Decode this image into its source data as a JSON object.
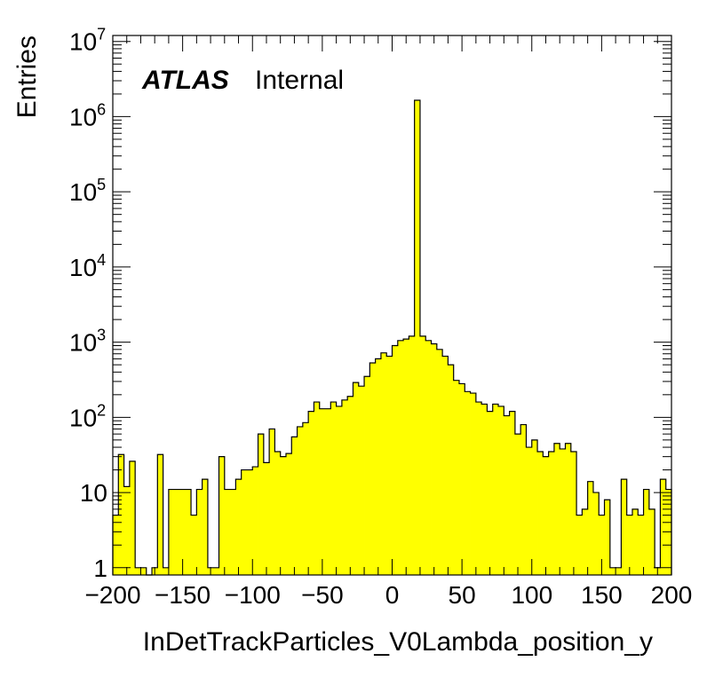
{
  "chart_data": {
    "type": "bar",
    "style": "histogram",
    "xlabel": "InDetTrackParticles_V0Lambda_position_y",
    "ylabel": "Entries",
    "badge_bold": "ATLAS",
    "badge_text": "Internal",
    "x_range": [
      -200,
      200
    ],
    "y_range": [
      0.8,
      12000000
    ],
    "y_scale": "log",
    "fill_color": "#ffff00",
    "line_color": "#000000",
    "bin_width": 4,
    "x_tick_labels": [
      "−200",
      "−150",
      "−100",
      "−50",
      "0",
      "50",
      "100",
      "150",
      "200"
    ],
    "x_tick_values": [
      -200,
      -150,
      -100,
      -50,
      0,
      50,
      100,
      150,
      200
    ],
    "y_tick_labels": [
      {
        "base": "1",
        "exp": ""
      },
      {
        "base": "10",
        "exp": ""
      },
      {
        "base": "10",
        "exp": "2"
      },
      {
        "base": "10",
        "exp": "3"
      },
      {
        "base": "10",
        "exp": "4"
      },
      {
        "base": "10",
        "exp": "5"
      },
      {
        "base": "10",
        "exp": "6"
      },
      {
        "base": "10",
        "exp": "7"
      }
    ],
    "y_tick_values": [
      1,
      10,
      100,
      1000,
      10000,
      100000,
      1000000,
      10000000
    ],
    "bin_edges_start": -200,
    "values": [
      5,
      32,
      12,
      26,
      1,
      1,
      0.01,
      1,
      32,
      1,
      11,
      11,
      11,
      11,
      5,
      11,
      15,
      1,
      1,
      30,
      11,
      11,
      15,
      20,
      20,
      22,
      60,
      25,
      70,
      35,
      30,
      33,
      55,
      75,
      85,
      120,
      160,
      130,
      130,
      160,
      140,
      170,
      190,
      290,
      260,
      350,
      530,
      600,
      720,
      650,
      900,
      1050,
      1100,
      1200,
      1650000,
      1200,
      1050,
      950,
      800,
      650,
      500,
      310,
      280,
      220,
      210,
      160,
      150,
      120,
      150,
      140,
      105,
      120,
      60,
      80,
      40,
      50,
      35,
      30,
      35,
      45,
      38,
      45,
      35,
      5,
      6,
      14,
      10,
      5,
      8,
      1,
      1,
      15,
      5,
      6,
      5,
      11,
      6,
      1,
      15,
      11
    ]
  }
}
